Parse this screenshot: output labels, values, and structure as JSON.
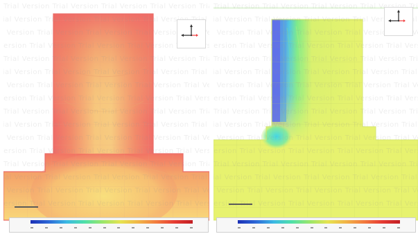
{
  "watermark": {
    "text": "Trial Version"
  },
  "panels": [
    {
      "id": "left",
      "colormap": "temperature-red-yellow"
    },
    {
      "id": "right",
      "colormap": "velocity-blue-yellow"
    }
  ],
  "colorbar": {
    "palette": [
      "#1b2fb5",
      "#2d68d7",
      "#3bb9e4",
      "#4fe0a8",
      "#9ae66a",
      "#e6e34f",
      "#f1b447",
      "#f27b3e",
      "#e63c33",
      "#c21e24"
    ]
  },
  "colors": {
    "left_hot": "#ef6a67",
    "left_mid": "#f6b171",
    "left_cool": "#f8d779",
    "right_base": "#e7f26f",
    "right_blue": "#5f70e9",
    "right_cyan": "#4ed5e2",
    "right_green": "#7deb8a"
  }
}
